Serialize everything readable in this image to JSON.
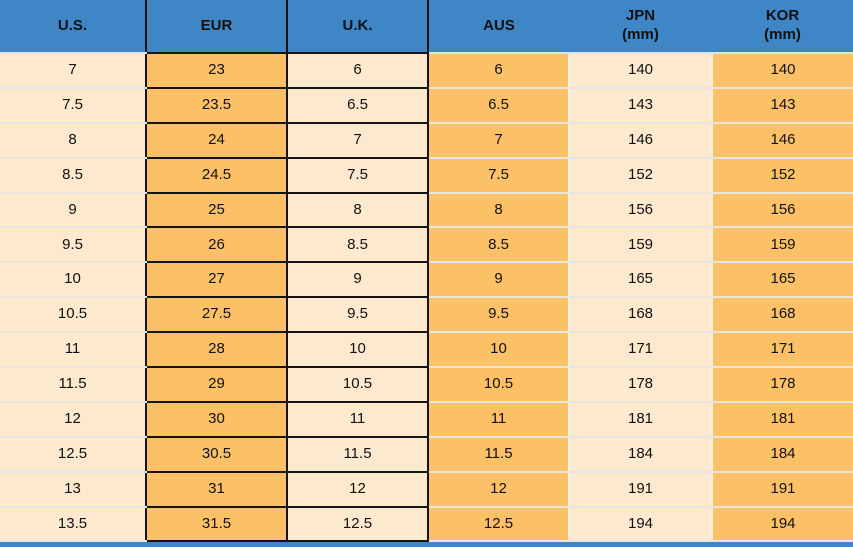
{
  "chart_data": {
    "type": "table",
    "columns": [
      {
        "label": "U.S.",
        "sub": ""
      },
      {
        "label": "EUR",
        "sub": ""
      },
      {
        "label": "U.K.",
        "sub": ""
      },
      {
        "label": "AUS",
        "sub": ""
      },
      {
        "label": "JPN",
        "sub": "(mm)"
      },
      {
        "label": "KOR",
        "sub": "(mm)"
      }
    ],
    "rows": [
      [
        "7",
        "23",
        "6",
        "6",
        "140",
        "140"
      ],
      [
        "7.5",
        "23.5",
        "6.5",
        "6.5",
        "143",
        "143"
      ],
      [
        "8",
        "24",
        "7",
        "7",
        "146",
        "146"
      ],
      [
        "8.5",
        "24.5",
        "7.5",
        "7.5",
        "152",
        "152"
      ],
      [
        "9",
        "25",
        "8",
        "8",
        "156",
        "156"
      ],
      [
        "9.5",
        "26",
        "8.5",
        "8.5",
        "159",
        "159"
      ],
      [
        "10",
        "27",
        "9",
        "9",
        "165",
        "165"
      ],
      [
        "10.5",
        "27.5",
        "9.5",
        "9.5",
        "168",
        "168"
      ],
      [
        "11",
        "28",
        "10",
        "10",
        "171",
        "171"
      ],
      [
        "11.5",
        "29",
        "10.5",
        "10.5",
        "178",
        "178"
      ],
      [
        "12",
        "30",
        "11",
        "11",
        "181",
        "181"
      ],
      [
        "12.5",
        "30.5",
        "11.5",
        "11.5",
        "184",
        "184"
      ],
      [
        "13",
        "31",
        "12",
        "12",
        "191",
        "191"
      ],
      [
        "13.5",
        "31.5",
        "12.5",
        "12.5",
        "194",
        "194"
      ]
    ],
    "layout_hints": {
      "grid": "EUR and U.K. columns outlined in black; other columns separated by light lines",
      "legend_position": "none"
    }
  },
  "colors": {
    "header_bg": "#3e86c6",
    "orange": "#fcc167",
    "cream": "#fde9ce",
    "border_black": "#141414",
    "row_separator": "#e9e6e0",
    "header_separator": "#dde3ea",
    "column_separator": "#f6f1e8",
    "text": "#111111"
  }
}
